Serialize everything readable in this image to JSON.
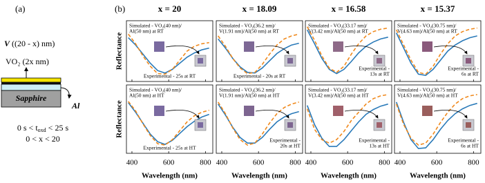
{
  "panel_a": {
    "label": "(a)",
    "v_layer": {
      "pre": "V",
      "post": " ((20 - x) nm)"
    },
    "vo2_layer": "VO₂ (2x nm)",
    "substrate": "Sapphire",
    "metal": "Al",
    "time_range": {
      "pre": "0 s < t",
      "sub": "oxd",
      "post": " < 25 s"
    },
    "x_range": "0 < x < 20"
  },
  "panel_b_label": "(b)",
  "chart_data": [
    {
      "type": "line",
      "title": "x = 20",
      "ylabel": "Reflectance",
      "x": [
        380,
        420,
        460,
        500,
        540,
        580,
        620,
        660,
        700,
        740,
        780,
        820
      ],
      "xlim": [
        370,
        840
      ],
      "xticks": [
        400,
        600,
        800
      ],
      "ylim": [
        0,
        1
      ],
      "series": [
        {
          "color": "#2a7ab9",
          "dash": false,
          "values": [
            0.72,
            0.6,
            0.45,
            0.3,
            0.18,
            0.14,
            0.2,
            0.3,
            0.4,
            0.47,
            0.52,
            0.55
          ]
        },
        {
          "color": "#f0891c",
          "dash": true,
          "values": [
            0.78,
            0.62,
            0.42,
            0.25,
            0.13,
            0.12,
            0.2,
            0.35,
            0.5,
            0.58,
            0.62,
            0.64
          ]
        }
      ],
      "annotations": [
        [
          "Simulated - VO₂(40 nm)/",
          "Al(50 nm) at RT"
        ],
        [
          "Experimental - 25s at RT"
        ]
      ],
      "inset_color": "#7a6aa0"
    },
    {
      "type": "line",
      "title": "x = 18.09",
      "x": [
        380,
        420,
        460,
        500,
        540,
        580,
        620,
        660,
        700,
        740,
        780,
        820
      ],
      "xlim": [
        370,
        840
      ],
      "xticks": [
        400,
        600,
        800
      ],
      "ylim": [
        0,
        1
      ],
      "series": [
        {
          "color": "#2a7ab9",
          "dash": false,
          "values": [
            0.7,
            0.55,
            0.38,
            0.24,
            0.15,
            0.14,
            0.22,
            0.34,
            0.46,
            0.54,
            0.6,
            0.63
          ]
        },
        {
          "color": "#f0891c",
          "dash": true,
          "values": [
            0.75,
            0.58,
            0.38,
            0.22,
            0.13,
            0.15,
            0.28,
            0.45,
            0.6,
            0.7,
            0.75,
            0.78
          ]
        }
      ],
      "annotations": [
        [
          "Simulated - VO₂(36.2 nm)/",
          "V(1.91 nm)/Al(50 nm) at RT"
        ],
        [
          "Experimental - 20s at RT"
        ]
      ],
      "inset_color": "#7d6895"
    },
    {
      "type": "line",
      "title": "x = 16.58",
      "x": [
        380,
        420,
        460,
        500,
        540,
        580,
        620,
        660,
        700,
        740,
        780,
        820
      ],
      "xlim": [
        370,
        840
      ],
      "xticks": [
        400,
        600,
        800
      ],
      "ylim": [
        0,
        1
      ],
      "series": [
        {
          "color": "#2a7ab9",
          "dash": false,
          "values": [
            0.85,
            0.62,
            0.38,
            0.2,
            0.13,
            0.2,
            0.33,
            0.47,
            0.58,
            0.65,
            0.7,
            0.73
          ]
        },
        {
          "color": "#f0891c",
          "dash": true,
          "values": [
            0.9,
            0.68,
            0.42,
            0.22,
            0.15,
            0.25,
            0.45,
            0.62,
            0.75,
            0.82,
            0.86,
            0.88
          ]
        }
      ],
      "annotations": [
        [
          "Simulated - VO₂(33.17 nm)/",
          "V(3.42 nm)/Al(50 nm) at RT"
        ],
        [
          "Experimental -",
          "13s at RT"
        ]
      ],
      "inset_color": "#8e6a88"
    },
    {
      "type": "line",
      "title": "x = 15.37",
      "x": [
        380,
        420,
        460,
        500,
        540,
        580,
        620,
        660,
        700,
        740,
        780,
        820
      ],
      "xlim": [
        370,
        840
      ],
      "xticks": [
        400,
        600,
        800
      ],
      "ylim": [
        0,
        1
      ],
      "series": [
        {
          "color": "#2a7ab9",
          "dash": false,
          "values": [
            0.8,
            0.55,
            0.3,
            0.12,
            0.1,
            0.2,
            0.35,
            0.5,
            0.6,
            0.67,
            0.72,
            0.75
          ]
        },
        {
          "color": "#f0891c",
          "dash": true,
          "values": [
            0.85,
            0.6,
            0.35,
            0.15,
            0.12,
            0.25,
            0.45,
            0.62,
            0.75,
            0.82,
            0.86,
            0.88
          ]
        }
      ],
      "annotations": [
        [
          "Simulated - VO₂(30.75 nm)/",
          "V(4.63 nm)/Al(50 nm) at RT"
        ],
        [
          "Experimental -",
          "6s at RT"
        ]
      ],
      "inset_color": "#8a5a7c"
    },
    {
      "type": "line",
      "ylabel": "Reflectance",
      "xlabel": "Wavelength (nm)",
      "x": [
        380,
        420,
        460,
        500,
        540,
        580,
        620,
        660,
        700,
        740,
        780,
        820
      ],
      "xlim": [
        370,
        840
      ],
      "xticks": [
        400,
        600,
        800
      ],
      "ylim": [
        0,
        1
      ],
      "series": [
        {
          "color": "#2a7ab9",
          "dash": false,
          "values": [
            0.74,
            0.6,
            0.44,
            0.28,
            0.17,
            0.13,
            0.19,
            0.29,
            0.39,
            0.47,
            0.53,
            0.57
          ]
        },
        {
          "color": "#f0891c",
          "dash": true,
          "values": [
            0.76,
            0.62,
            0.43,
            0.26,
            0.14,
            0.12,
            0.2,
            0.33,
            0.46,
            0.55,
            0.6,
            0.63
          ]
        }
      ],
      "annotations": [
        [
          "Simulated - VO₂(40 nm)/",
          "Al(50 nm) at HT"
        ],
        [
          "Experimental - 25s at HT"
        ]
      ],
      "inset_color": "#7a6aa0"
    },
    {
      "type": "line",
      "xlabel": "Wavelength (nm)",
      "x": [
        380,
        420,
        460,
        500,
        540,
        580,
        620,
        660,
        700,
        740,
        780,
        820
      ],
      "xlim": [
        370,
        840
      ],
      "xticks": [
        400,
        600,
        800
      ],
      "ylim": [
        0,
        1
      ],
      "series": [
        {
          "color": "#2a7ab9",
          "dash": false,
          "values": [
            0.72,
            0.56,
            0.38,
            0.23,
            0.15,
            0.15,
            0.23,
            0.35,
            0.46,
            0.53,
            0.58,
            0.61
          ]
        },
        {
          "color": "#f0891c",
          "dash": true,
          "values": [
            0.75,
            0.58,
            0.37,
            0.2,
            0.12,
            0.15,
            0.28,
            0.44,
            0.58,
            0.67,
            0.72,
            0.75
          ]
        }
      ],
      "annotations": [
        [
          "Simulated - VO₂(36.2 nm)/",
          "V(1.91 nm)/Al(50 nm) at HT"
        ],
        [
          "Experimental -",
          "20s at HT"
        ]
      ],
      "inset_color": "#7d6590"
    },
    {
      "type": "line",
      "xlabel": "Wavelength (nm)",
      "x": [
        380,
        420,
        460,
        500,
        540,
        580,
        620,
        660,
        700,
        740,
        780,
        820
      ],
      "xlim": [
        370,
        840
      ],
      "xticks": [
        400,
        600,
        800
      ],
      "ylim": [
        0,
        1
      ],
      "series": [
        {
          "color": "#2a7ab9",
          "dash": false,
          "values": [
            0.7,
            0.42,
            0.22,
            0.1,
            0.1,
            0.2,
            0.33,
            0.46,
            0.57,
            0.64,
            0.69,
            0.72
          ]
        },
        {
          "color": "#f0891c",
          "dash": true,
          "values": [
            0.65,
            0.35,
            0.2,
            0.15,
            0.2,
            0.32,
            0.48,
            0.6,
            0.72,
            0.8,
            0.84,
            0.86
          ]
        }
      ],
      "annotations": [
        [
          "Simulated - VO₂(33.17 nm)/",
          "V(3.42 nm)/Al(50 nm) at HT"
        ],
        [
          "Experimental -",
          "13s at HT"
        ]
      ],
      "inset_color": "#a0606a"
    },
    {
      "type": "line",
      "xlabel": "Wavelength (nm)",
      "x": [
        380,
        420,
        460,
        500,
        540,
        580,
        620,
        660,
        700,
        740,
        780,
        820
      ],
      "xlim": [
        370,
        840
      ],
      "xticks": [
        400,
        600,
        800
      ],
      "ylim": [
        0,
        1
      ],
      "series": [
        {
          "color": "#2a7ab9",
          "dash": false,
          "values": [
            0.75,
            0.45,
            0.2,
            0.07,
            0.08,
            0.2,
            0.35,
            0.48,
            0.58,
            0.65,
            0.7,
            0.73
          ]
        },
        {
          "color": "#f0891c",
          "dash": true,
          "values": [
            0.72,
            0.42,
            0.22,
            0.12,
            0.15,
            0.28,
            0.45,
            0.6,
            0.72,
            0.8,
            0.84,
            0.86
          ]
        }
      ],
      "annotations": [
        [
          "Simulated - VO₂(30.75 nm)/",
          "V(4.63 nm)/Al(50 nm) at HT"
        ],
        [
          "Experimental -",
          "6s at HT"
        ]
      ],
      "inset_color": "#9a5e5c"
    }
  ]
}
